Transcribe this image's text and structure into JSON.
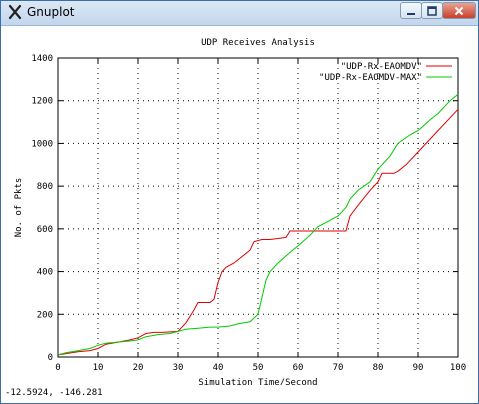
{
  "window": {
    "title": "Gnuplot",
    "icon": "gnuplot-x-icon",
    "controls": {
      "minimize": "minimize-icon",
      "maximize": "maximize-icon",
      "close": "close-icon"
    }
  },
  "status": {
    "coords": "-12.5924, -146.281"
  },
  "colors": {
    "series1": "#e00000",
    "series2": "#00cc00",
    "grid": "#000000"
  },
  "chart_data": {
    "type": "line",
    "title": "UDP Receives Analysis",
    "xlabel": "Simulation Time/Second",
    "ylabel": "No. of Pkts",
    "xlim": [
      0,
      100
    ],
    "ylim": [
      0,
      1400
    ],
    "xticks": [
      "0",
      "10",
      "20",
      "30",
      "40",
      "50",
      "60",
      "70",
      "80",
      "90",
      "100"
    ],
    "yticks": [
      "0",
      "200",
      "400",
      "600",
      "800",
      "1000",
      "1200",
      "1400"
    ],
    "grid": true,
    "legend_position": "top-right",
    "series": [
      {
        "name": "\"UDP-Rx-EAOMDV\"",
        "color": "#e00000",
        "x": [
          0,
          5,
          8,
          10,
          12,
          15,
          18,
          20,
          22,
          24,
          26,
          30,
          32,
          34,
          35,
          38,
          39,
          40,
          41,
          42,
          44,
          46,
          48,
          49,
          51,
          53,
          55,
          57,
          58,
          60,
          65,
          70,
          72,
          73,
          75,
          78,
          80,
          81,
          82,
          84,
          85,
          87,
          90,
          95,
          100
        ],
        "y": [
          10,
          25,
          30,
          40,
          60,
          70,
          80,
          90,
          110,
          115,
          115,
          120,
          160,
          220,
          255,
          255,
          270,
          350,
          400,
          420,
          440,
          470,
          500,
          540,
          550,
          550,
          555,
          560,
          590,
          590,
          590,
          590,
          590,
          660,
          710,
          780,
          820,
          860,
          860,
          860,
          870,
          900,
          960,
          1060,
          1160
        ]
      },
      {
        "name": "\"UDP-Rx-EAOMDV-MAX\"",
        "color": "#00cc00",
        "x": [
          0,
          2,
          5,
          8,
          10,
          12,
          15,
          18,
          20,
          22,
          25,
          28,
          30,
          32,
          35,
          38,
          40,
          43,
          45,
          48,
          50,
          51,
          52,
          53,
          55,
          58,
          60,
          63,
          65,
          68,
          70,
          72,
          73,
          75,
          78,
          80,
          83,
          85,
          88,
          90,
          93,
          95,
          98,
          100
        ],
        "y": [
          10,
          20,
          30,
          40,
          55,
          65,
          70,
          75,
          80,
          95,
          105,
          110,
          120,
          130,
          135,
          140,
          140,
          145,
          155,
          165,
          200,
          280,
          360,
          400,
          440,
          490,
          520,
          570,
          610,
          640,
          660,
          700,
          740,
          780,
          820,
          880,
          940,
          1000,
          1040,
          1060,
          1110,
          1140,
          1200,
          1230
        ]
      }
    ]
  }
}
